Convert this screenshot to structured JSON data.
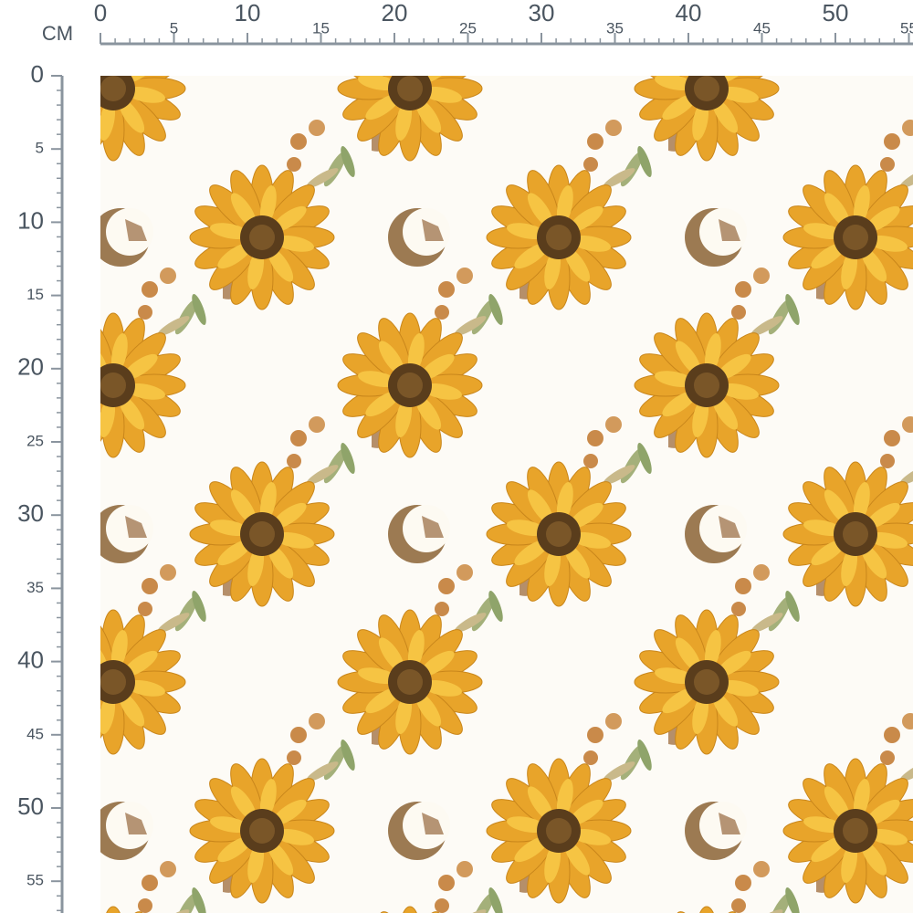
{
  "ruler": {
    "unit": "CM",
    "top_labels": [
      0,
      5,
      10,
      15,
      20,
      25,
      30,
      35,
      40,
      45,
      50,
      55
    ],
    "left_labels": [
      0,
      5,
      10,
      15,
      20,
      25,
      30,
      35,
      40,
      45,
      50,
      55
    ]
  }
}
